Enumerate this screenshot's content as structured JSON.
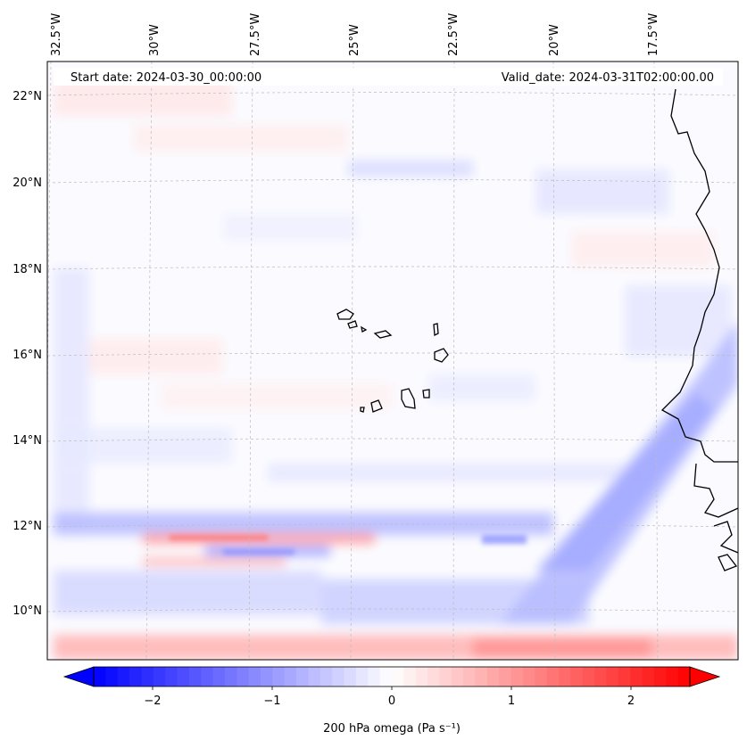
{
  "header": {
    "start_date": "Start date: 2024-03-30_00:00:00",
    "valid_date": "Valid_date: 2024-03-31T02:00:00.00"
  },
  "map": {
    "lon_labels": [
      "32.5°W",
      "30°W",
      "27.5°W",
      "25°W",
      "22.5°W",
      "20°W",
      "17.5°W"
    ],
    "lat_labels": [
      "22°N",
      "20°N",
      "18°N",
      "16°N",
      "14°N",
      "12°N",
      "10°N"
    ],
    "gridlines": true
  },
  "colorbar": {
    "label": "200 hPa omega (Pa s⁻¹)",
    "ticks": [
      "−2",
      "−1",
      "0",
      "1",
      "2"
    ],
    "range": [
      -2.5,
      2.5
    ],
    "cmap": "bwr",
    "extend": "both"
  },
  "colors": {
    "negative": "#0000ff",
    "neutral": "#ffffff",
    "positive": "#ff0000",
    "gridline": "#bbbbbb",
    "coastline": "#000000"
  }
}
